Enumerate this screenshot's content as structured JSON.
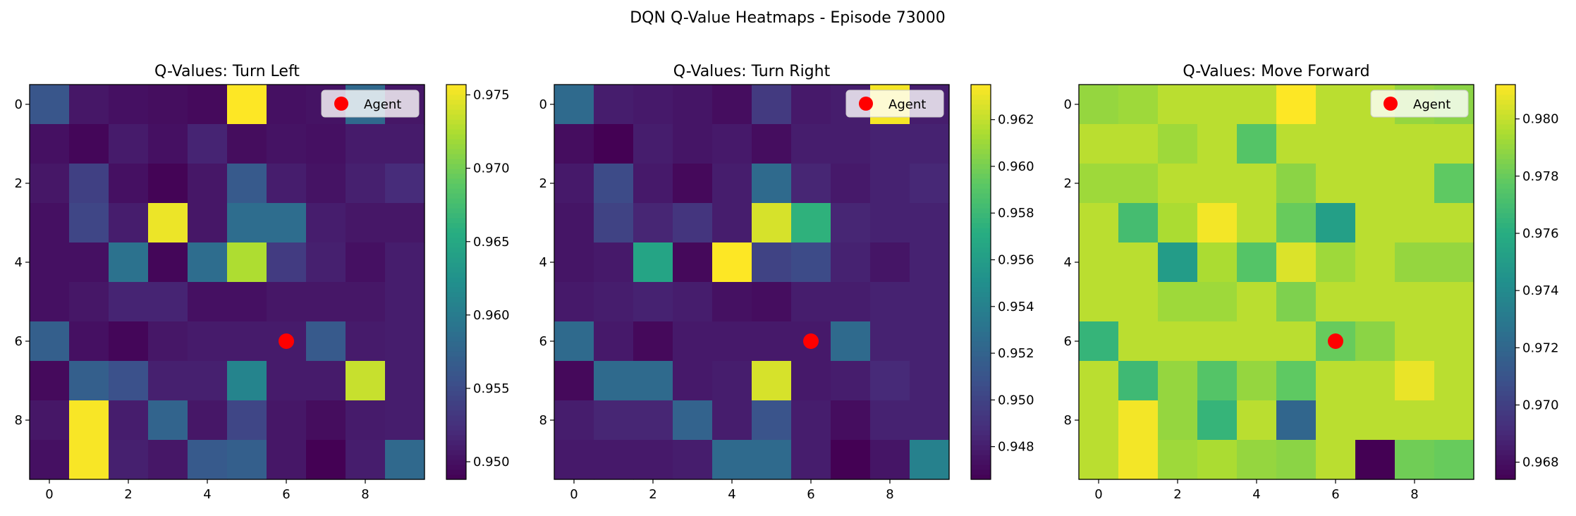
{
  "figure": {
    "suptitle": "DQN Q-Value Heatmaps - Episode 73000"
  },
  "legend_label": "Agent",
  "agent_color": "#ff0000",
  "agent_position": {
    "x": 6,
    "y": 6
  },
  "chart_data": [
    {
      "type": "heatmap",
      "title": "Q-Values: Turn Left",
      "colormap": "viridis",
      "x_ticks": [
        "0",
        "2",
        "4",
        "6",
        "8"
      ],
      "y_ticks": [
        "0",
        "2",
        "4",
        "6",
        "8"
      ],
      "colorbar": {
        "min": 0.9488,
        "max": 0.9757,
        "ticks": [
          "0.950",
          "0.955",
          "0.960",
          "0.965",
          "0.970",
          "0.975"
        ],
        "tick_values": [
          0.95,
          0.955,
          0.96,
          0.965,
          0.97,
          0.975
        ]
      },
      "legend_position": "top-right",
      "values": [
        [
          0.956,
          0.9505,
          0.95,
          0.9498,
          0.9495,
          0.9757,
          0.95,
          0.9502,
          0.958,
          0.9505
        ],
        [
          0.95,
          0.9492,
          0.9508,
          0.95,
          0.9515,
          0.9497,
          0.9502,
          0.95,
          0.9508,
          0.9508
        ],
        [
          0.9505,
          0.954,
          0.95,
          0.949,
          0.9505,
          0.9565,
          0.951,
          0.9502,
          0.9512,
          0.9522
        ],
        [
          0.95,
          0.9545,
          0.951,
          0.975,
          0.9505,
          0.9585,
          0.9585,
          0.951,
          0.9505,
          0.9505
        ],
        [
          0.95,
          0.95,
          0.959,
          0.9492,
          0.9585,
          0.9725,
          0.9535,
          0.9512,
          0.95,
          0.951
        ],
        [
          0.95,
          0.9505,
          0.9515,
          0.9515,
          0.95,
          0.95,
          0.9505,
          0.9505,
          0.9505,
          0.951
        ],
        [
          0.957,
          0.95,
          0.9492,
          0.9505,
          0.9508,
          0.9508,
          0.9508,
          0.9565,
          0.9508,
          0.951
        ],
        [
          0.9495,
          0.957,
          0.9555,
          0.9512,
          0.9512,
          0.961,
          0.9508,
          0.9508,
          0.9735,
          0.951
        ],
        [
          0.9505,
          0.9755,
          0.951,
          0.9575,
          0.9505,
          0.9545,
          0.9505,
          0.9497,
          0.9508,
          0.951
        ],
        [
          0.95,
          0.9755,
          0.9512,
          0.9505,
          0.9565,
          0.957,
          0.9505,
          0.9488,
          0.951,
          0.958
        ]
      ]
    },
    {
      "type": "heatmap",
      "title": "Q-Values: Turn Right",
      "colormap": "viridis",
      "x_ticks": [
        "0",
        "2",
        "4",
        "6",
        "8"
      ],
      "y_ticks": [
        "0",
        "2",
        "4",
        "6",
        "8"
      ],
      "colorbar": {
        "min": 0.9466,
        "max": 0.9635,
        "ticks": [
          "0.948",
          "0.950",
          "0.952",
          "0.954",
          "0.956",
          "0.958",
          "0.960",
          "0.962"
        ],
        "tick_values": [
          0.948,
          0.95,
          0.952,
          0.954,
          0.956,
          0.958,
          0.96,
          0.962
        ]
      },
      "legend_position": "top-right",
      "values": [
        [
          0.9525,
          0.948,
          0.9478,
          0.9476,
          0.9472,
          0.9495,
          0.9478,
          0.948,
          0.9633,
          0.948
        ],
        [
          0.9472,
          0.9466,
          0.948,
          0.9476,
          0.9478,
          0.9472,
          0.948,
          0.948,
          0.9482,
          0.9482
        ],
        [
          0.9478,
          0.9505,
          0.9478,
          0.947,
          0.948,
          0.9525,
          0.9484,
          0.9478,
          0.9482,
          0.9485
        ],
        [
          0.9476,
          0.95,
          0.9484,
          0.9492,
          0.948,
          0.9625,
          0.9575,
          0.9484,
          0.9482,
          0.9482
        ],
        [
          0.9476,
          0.9478,
          0.9565,
          0.947,
          0.9635,
          0.95,
          0.9505,
          0.9482,
          0.9476,
          0.9482
        ],
        [
          0.9478,
          0.948,
          0.9482,
          0.948,
          0.9474,
          0.9472,
          0.948,
          0.948,
          0.9482,
          0.9482
        ],
        [
          0.9525,
          0.9478,
          0.947,
          0.9478,
          0.9478,
          0.9478,
          0.9478,
          0.9525,
          0.9482,
          0.9482
        ],
        [
          0.947,
          0.9525,
          0.9525,
          0.9478,
          0.948,
          0.9625,
          0.9478,
          0.948,
          0.9486,
          0.9482
        ],
        [
          0.948,
          0.9484,
          0.9484,
          0.952,
          0.948,
          0.951,
          0.948,
          0.9472,
          0.9482,
          0.9482
        ],
        [
          0.9478,
          0.9478,
          0.9478,
          0.948,
          0.9525,
          0.9525,
          0.948,
          0.9466,
          0.9476,
          0.954
        ]
      ]
    },
    {
      "type": "heatmap",
      "title": "Q-Values: Move Forward",
      "colormap": "viridis",
      "x_ticks": [
        "0",
        "2",
        "4",
        "6",
        "8"
      ],
      "y_ticks": [
        "0",
        "2",
        "4",
        "6",
        "8"
      ],
      "colorbar": {
        "min": 0.9674,
        "max": 0.9812,
        "ticks": [
          "0.968",
          "0.970",
          "0.972",
          "0.974",
          "0.976",
          "0.978",
          "0.980"
        ],
        "tick_values": [
          0.968,
          0.97,
          0.972,
          0.974,
          0.976,
          0.978,
          0.98
        ]
      },
      "legend_position": "top-right",
      "values": [
        [
          0.979,
          0.9792,
          0.9798,
          0.9798,
          0.9798,
          0.9812,
          0.9798,
          0.9798,
          0.979,
          0.9788
        ],
        [
          0.9798,
          0.9798,
          0.9792,
          0.9798,
          0.9775,
          0.9798,
          0.9798,
          0.9798,
          0.9798,
          0.9798
        ],
        [
          0.9792,
          0.9792,
          0.9798,
          0.9798,
          0.9798,
          0.9788,
          0.9798,
          0.9798,
          0.9798,
          0.9778
        ],
        [
          0.9798,
          0.977,
          0.9795,
          0.981,
          0.9798,
          0.978,
          0.9752,
          0.9798,
          0.9798,
          0.9798
        ],
        [
          0.9798,
          0.9798,
          0.975,
          0.9795,
          0.9775,
          0.9805,
          0.9792,
          0.9798,
          0.979,
          0.979
        ],
        [
          0.9798,
          0.9798,
          0.9792,
          0.9792,
          0.9798,
          0.9785,
          0.9798,
          0.9798,
          0.9798,
          0.9798
        ],
        [
          0.9765,
          0.9798,
          0.9798,
          0.9798,
          0.9798,
          0.9798,
          0.978,
          0.9788,
          0.9798,
          0.9798
        ],
        [
          0.9798,
          0.9768,
          0.979,
          0.9775,
          0.979,
          0.9778,
          0.9798,
          0.9798,
          0.9808,
          0.9798
        ],
        [
          0.9798,
          0.981,
          0.979,
          0.9765,
          0.9798,
          0.972,
          0.9798,
          0.9798,
          0.9798,
          0.9798
        ],
        [
          0.9798,
          0.981,
          0.9792,
          0.9795,
          0.979,
          0.9788,
          0.9798,
          0.9674,
          0.9782,
          0.978
        ]
      ]
    }
  ]
}
